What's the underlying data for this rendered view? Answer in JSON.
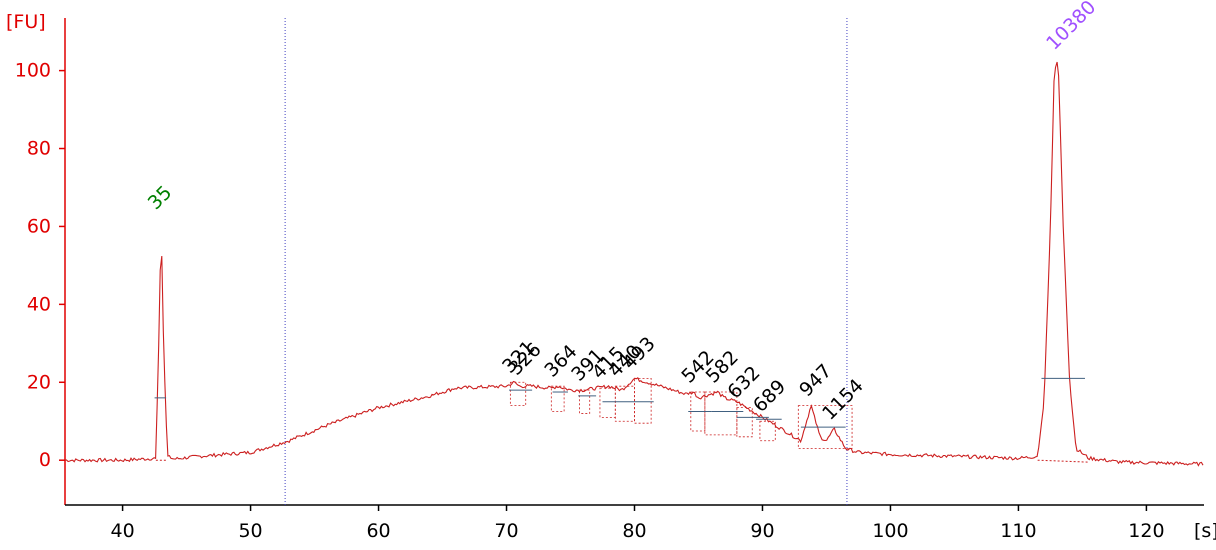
{
  "chart_data": {
    "type": "line",
    "title": "",
    "xlabel": "[s]",
    "ylabel": "[FU]",
    "xlim": [
      35.5,
      124.5
    ],
    "ylim": [
      -11.5,
      113.5
    ],
    "x_ticks": [
      40,
      50,
      60,
      70,
      80,
      90,
      100,
      110,
      120
    ],
    "y_ticks": [
      0,
      20,
      40,
      60,
      80,
      100
    ],
    "grid": false,
    "vertical_markers": [
      52.7,
      96.6
    ],
    "series": [
      {
        "values_description_x": [
          35.5,
          40,
          42.6,
          42.9,
          43.0,
          43.2,
          43.5,
          44,
          46,
          50,
          53,
          56,
          60,
          64,
          66,
          70,
          70.6,
          71,
          72,
          73.5,
          74,
          75,
          76,
          77,
          78,
          79,
          80,
          81,
          82,
          83,
          84,
          84.6,
          85,
          85.5,
          86.5,
          87,
          88,
          89,
          90,
          91,
          92,
          93,
          93.8,
          94.5,
          95,
          95.6,
          96.5,
          97.5,
          100,
          105,
          110,
          111.5,
          112,
          112.5,
          112.8,
          113.1,
          113.5,
          114,
          114.5,
          115.5,
          118,
          124.5
        ],
        "values": [
          0,
          0,
          0.5,
          40,
          62,
          30,
          1,
          0.3,
          1,
          2,
          5,
          9,
          13.5,
          16.5,
          18.5,
          19,
          20,
          19,
          19,
          18.5,
          19,
          18,
          18,
          18.5,
          19,
          18,
          21,
          20,
          19,
          18,
          17,
          17.5,
          16,
          16.5,
          17.5,
          16,
          15,
          13,
          11,
          9,
          7,
          5,
          14,
          6,
          5,
          8,
          3,
          2,
          1.5,
          1,
          0.5,
          1,
          15,
          60,
          100,
          103,
          60,
          20,
          3,
          0.5,
          -0.5,
          -1
        ]
      }
    ],
    "peaks": [
      {
        "label": "35",
        "x": 42.9,
        "y": 62,
        "color": "#008000"
      },
      {
        "label": "321",
        "x": 70.6,
        "y": 20
      },
      {
        "label": "326",
        "x": 71.1,
        "y": 19.5
      },
      {
        "label": "364",
        "x": 73.9,
        "y": 19
      },
      {
        "label": "391",
        "x": 76.0,
        "y": 18
      },
      {
        "label": "415",
        "x": 77.6,
        "y": 18.5
      },
      {
        "label": "440",
        "x": 78.9,
        "y": 19
      },
      {
        "label": "493",
        "x": 80.0,
        "y": 21
      },
      {
        "label": "542",
        "x": 84.6,
        "y": 17.5
      },
      {
        "label": "582",
        "x": 86.5,
        "y": 17.5
      },
      {
        "label": "632",
        "x": 88.2,
        "y": 13.5
      },
      {
        "label": "689",
        "x": 90.2,
        "y": 10
      },
      {
        "label": "947",
        "x": 93.8,
        "y": 14
      },
      {
        "label": "1154",
        "x": 95.6,
        "y": 8
      },
      {
        "label": "10380",
        "x": 113.1,
        "y": 103,
        "color": "#a050ff"
      }
    ]
  }
}
